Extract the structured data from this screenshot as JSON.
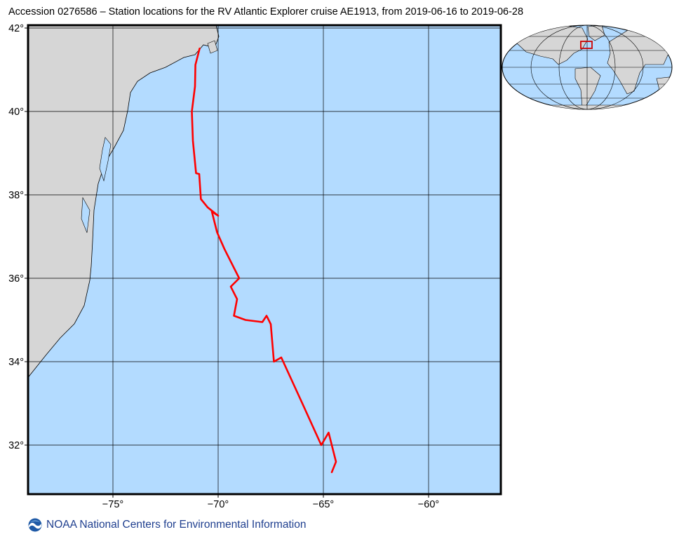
{
  "title": "Accession 0276586 – Station locations for the RV Atlantic Explorer cruise AE1913, from 2019-06-16 to 2019-06-28",
  "footer": {
    "text": "NOAA National Centers for Environmental Information",
    "logo": "noaa-logo-icon"
  },
  "colors": {
    "ocean": "#b3dbff",
    "land": "#d6d6d6",
    "track": "#ff0000",
    "grid": "#000000"
  },
  "map": {
    "lon_range": [
      -79,
      -56.5
    ],
    "lat_range": [
      31,
      42
    ],
    "lon_ticks": [
      {
        "v": -75,
        "label": "−75°"
      },
      {
        "v": -70,
        "label": "−70°"
      },
      {
        "v": -65,
        "label": "−65°"
      },
      {
        "v": -60,
        "label": "−60°"
      }
    ],
    "lat_ticks": [
      {
        "v": 32,
        "label": "32°"
      },
      {
        "v": 34,
        "label": "34°"
      },
      {
        "v": 36,
        "label": "36°"
      },
      {
        "v": 38,
        "label": "38°"
      },
      {
        "v": 40,
        "label": "40°"
      },
      {
        "v": 42,
        "label": "42°"
      }
    ]
  },
  "track": [
    [
      -70.88,
      41.51
    ],
    [
      -71.08,
      41.12
    ],
    [
      -71.1,
      40.6
    ],
    [
      -71.25,
      40.0
    ],
    [
      -71.2,
      39.3
    ],
    [
      -71.05,
      38.52
    ],
    [
      -70.9,
      38.5
    ],
    [
      -70.82,
      37.9
    ],
    [
      -70.5,
      37.7
    ],
    [
      -70.0,
      37.5
    ],
    [
      -70.3,
      37.6
    ],
    [
      -70.05,
      37.1
    ],
    [
      -69.7,
      36.7
    ],
    [
      -69.0,
      36.0
    ],
    [
      -69.4,
      35.8
    ],
    [
      -69.1,
      35.5
    ],
    [
      -69.25,
      35.1
    ],
    [
      -68.7,
      35.0
    ],
    [
      -67.9,
      34.95
    ],
    [
      -67.7,
      35.1
    ],
    [
      -67.5,
      34.9
    ],
    [
      -67.35,
      34.0
    ],
    [
      -67.0,
      34.1
    ],
    [
      -66.0,
      33.0
    ],
    [
      -65.1,
      32.0
    ],
    [
      -64.75,
      32.3
    ],
    [
      -64.4,
      31.6
    ],
    [
      -64.6,
      31.35
    ]
  ],
  "inset": {
    "type": "world-overview",
    "box_color": "#cc0000"
  }
}
